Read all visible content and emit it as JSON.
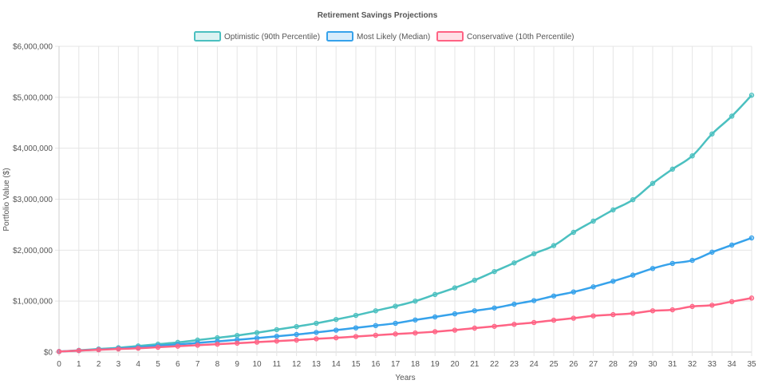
{
  "chart_data": {
    "type": "line",
    "title": "Retirement Savings Projections",
    "xlabel": "Years",
    "ylabel": "Portfolio Value ($)",
    "x": [
      0,
      1,
      2,
      3,
      4,
      5,
      6,
      7,
      8,
      9,
      10,
      11,
      12,
      13,
      14,
      15,
      16,
      17,
      18,
      19,
      20,
      21,
      22,
      23,
      24,
      25,
      26,
      27,
      28,
      29,
      30,
      31,
      32,
      33,
      34,
      35
    ],
    "x_tick_labels": [
      "0",
      "1",
      "2",
      "3",
      "4",
      "5",
      "6",
      "7",
      "8",
      "9",
      "10",
      "11",
      "12",
      "13",
      "14",
      "15",
      "16",
      "17",
      "18",
      "19",
      "20",
      "21",
      "22",
      "23",
      "24",
      "25",
      "26",
      "27",
      "28",
      "29",
      "30",
      "31",
      "32",
      "33",
      "34",
      "35"
    ],
    "ylim": [
      0,
      6000000
    ],
    "y_ticks": [
      0,
      1000000,
      2000000,
      3000000,
      4000000,
      5000000,
      6000000
    ],
    "y_tick_labels": [
      "$0",
      "$1,000,000",
      "$2,000,000",
      "$3,000,000",
      "$4,000,000",
      "$5,000,000",
      "$6,000,000"
    ],
    "grid": true,
    "legend_position": "top-center",
    "series": [
      {
        "name": "Optimistic (90th Percentile)",
        "color": "#4bc0c0",
        "values": [
          10000,
          35000,
          60000,
          85000,
          120000,
          155000,
          190000,
          235000,
          280000,
          325000,
          380000,
          440000,
          500000,
          565000,
          640000,
          720000,
          810000,
          900000,
          1000000,
          1130000,
          1260000,
          1410000,
          1580000,
          1750000,
          1930000,
          2090000,
          2350000,
          2570000,
          2790000,
          2990000,
          3310000,
          3590000,
          3850000,
          4280000,
          4630000,
          5040000
        ]
      },
      {
        "name": "Most Likely (Median)",
        "color": "#36a2eb",
        "values": [
          10000,
          30000,
          50000,
          70000,
          95000,
          125000,
          150000,
          180000,
          210000,
          240000,
          275000,
          310000,
          345000,
          385000,
          430000,
          475000,
          520000,
          565000,
          630000,
          690000,
          750000,
          810000,
          865000,
          940000,
          1010000,
          1100000,
          1180000,
          1280000,
          1390000,
          1510000,
          1640000,
          1740000,
          1800000,
          1960000,
          2100000,
          2240000
        ]
      },
      {
        "name": "Conservative (10th Percentile)",
        "color": "#ff6384",
        "values": [
          10000,
          30000,
          45000,
          60000,
          75000,
          95000,
          115000,
          135000,
          155000,
          175000,
          195000,
          215000,
          235000,
          260000,
          280000,
          305000,
          330000,
          355000,
          375000,
          400000,
          430000,
          470000,
          505000,
          545000,
          580000,
          625000,
          665000,
          710000,
          735000,
          760000,
          810000,
          830000,
          895000,
          920000,
          990000,
          1060000
        ]
      }
    ]
  }
}
